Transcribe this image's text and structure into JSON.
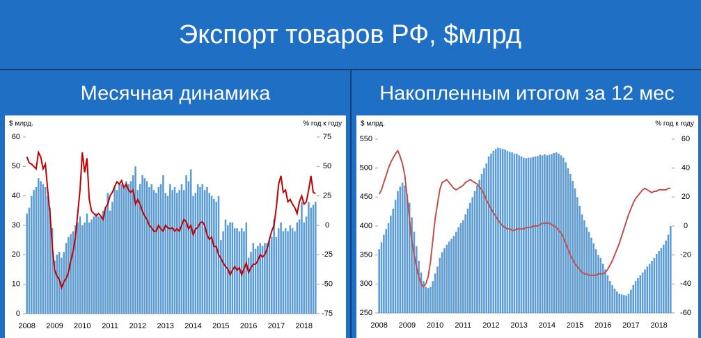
{
  "title": "Экспорт товаров РФ, $млрд",
  "chart_data": [
    {
      "type": "combo",
      "title": "Месячная динамика",
      "y_label": "$ млрд.",
      "y2_label": "% год к году",
      "categories": [
        "2008",
        null,
        null,
        null,
        null,
        null,
        null,
        null,
        null,
        null,
        null,
        null,
        "2009",
        null,
        null,
        null,
        null,
        null,
        null,
        null,
        null,
        null,
        null,
        null,
        "2010",
        null,
        null,
        null,
        null,
        null,
        null,
        null,
        null,
        null,
        null,
        null,
        "2011",
        null,
        null,
        null,
        null,
        null,
        null,
        null,
        null,
        null,
        null,
        null,
        "2012",
        null,
        null,
        null,
        null,
        null,
        null,
        null,
        null,
        null,
        null,
        null,
        "2013",
        null,
        null,
        null,
        null,
        null,
        null,
        null,
        null,
        null,
        null,
        null,
        "2014",
        null,
        null,
        null,
        null,
        null,
        null,
        null,
        null,
        null,
        null,
        null,
        "2015",
        null,
        null,
        null,
        null,
        null,
        null,
        null,
        null,
        null,
        null,
        null,
        "2016",
        null,
        null,
        null,
        null,
        null,
        null,
        null,
        null,
        null,
        null,
        null,
        "2017",
        null,
        null,
        null,
        null,
        null,
        null,
        null,
        null,
        null,
        null,
        null,
        "2018",
        null,
        null,
        null,
        null,
        null
      ],
      "series": [
        {
          "color": "#5b9bd5",
          "values": [
            34,
            36,
            40,
            42,
            43,
            46,
            45,
            44,
            43,
            40,
            36,
            29,
            18,
            20,
            21,
            19,
            21,
            24,
            26,
            27,
            28,
            30,
            31,
            33,
            30,
            31,
            34,
            31,
            32,
            33,
            34,
            33,
            33,
            35,
            36,
            41,
            35,
            38,
            43,
            42,
            44,
            44,
            43,
            45,
            44,
            45,
            47,
            50,
            42,
            44,
            47,
            46,
            45,
            43,
            44,
            42,
            41,
            43,
            44,
            47,
            41,
            40,
            44,
            42,
            43,
            41,
            42,
            44,
            42,
            47,
            45,
            49,
            40,
            41,
            44,
            43,
            44,
            42,
            43,
            41,
            40,
            39,
            38,
            40,
            25,
            28,
            32,
            30,
            31,
            31,
            29,
            29,
            28,
            29,
            28,
            31,
            19,
            21,
            24,
            22,
            23,
            24,
            23,
            24,
            24,
            25,
            26,
            32,
            26,
            29,
            31,
            28,
            29,
            28,
            30,
            29,
            28,
            31,
            32,
            38,
            31,
            33,
            38,
            36,
            37,
            38
          ]
        },
        {
          "color": "#c00000",
          "axis": "y2",
          "values": [
            58,
            53,
            52,
            50,
            48,
            62,
            58,
            48,
            52,
            30,
            10,
            -18,
            -38,
            -43,
            -46,
            -53,
            -48,
            -45,
            -40,
            -30,
            -22,
            -10,
            10,
            30,
            62,
            45,
            57,
            22,
            12,
            10,
            8,
            10,
            8,
            5,
            15,
            18,
            25,
            28,
            33,
            37,
            35,
            38,
            32,
            35,
            30,
            28,
            30,
            18,
            22,
            18,
            12,
            8,
            5,
            0,
            -2,
            -5,
            -5,
            0,
            -3,
            -5,
            0,
            -2,
            -3,
            -2,
            -5,
            -3,
            -5,
            0,
            5,
            3,
            -3,
            0,
            -8,
            -3,
            -2,
            2,
            3,
            0,
            -8,
            -12,
            -10,
            -18,
            -18,
            -25,
            -28,
            -32,
            -35,
            -37,
            -42,
            -38,
            -35,
            -38,
            -36,
            -42,
            -37,
            -32,
            -40,
            -36,
            -33,
            -33,
            -30,
            -25,
            -27,
            -25,
            -20,
            -12,
            -5,
            0,
            15,
            35,
            42,
            28,
            30,
            20,
            22,
            18,
            15,
            10,
            20,
            25,
            18,
            20,
            30,
            42,
            28,
            27
          ]
        }
      ],
      "ylim": [
        0,
        60
      ],
      "yticks": [
        0,
        10,
        20,
        30,
        40,
        50,
        60
      ],
      "y2lim": [
        -75,
        75
      ],
      "y2ticks": [
        -75,
        -50,
        -25,
        0,
        25,
        50,
        75
      ]
    },
    {
      "type": "combo",
      "title": "Накопленным итогом за 12 мес",
      "y_label": "$ млрд.",
      "y2_label": "% год к году",
      "categories": [
        "2008",
        null,
        null,
        null,
        null,
        null,
        null,
        null,
        null,
        null,
        null,
        null,
        "2009",
        null,
        null,
        null,
        null,
        null,
        null,
        null,
        null,
        null,
        null,
        null,
        "2010",
        null,
        null,
        null,
        null,
        null,
        null,
        null,
        null,
        null,
        null,
        null,
        "2011",
        null,
        null,
        null,
        null,
        null,
        null,
        null,
        null,
        null,
        null,
        null,
        "2012",
        null,
        null,
        null,
        null,
        null,
        null,
        null,
        null,
        null,
        null,
        null,
        "2013",
        null,
        null,
        null,
        null,
        null,
        null,
        null,
        null,
        null,
        null,
        null,
        "2014",
        null,
        null,
        null,
        null,
        null,
        null,
        null,
        null,
        null,
        null,
        null,
        "2015",
        null,
        null,
        null,
        null,
        null,
        null,
        null,
        null,
        null,
        null,
        null,
        "2016",
        null,
        null,
        null,
        null,
        null,
        null,
        null,
        null,
        null,
        null,
        null,
        "2017",
        null,
        null,
        null,
        null,
        null,
        null,
        null,
        null,
        null,
        null,
        null,
        "2018",
        null,
        null,
        null,
        null,
        null
      ],
      "series": [
        {
          "color": "#5b9bd5",
          "values": [
            360,
            372,
            385,
            395,
            405,
            418,
            430,
            445,
            460,
            468,
            475,
            470,
            455,
            440,
            415,
            390,
            365,
            340,
            320,
            305,
            295,
            293,
            295,
            305,
            318,
            330,
            345,
            355,
            362,
            368,
            373,
            378,
            383,
            390,
            398,
            405,
            410,
            420,
            430,
            440,
            450,
            460,
            470,
            480,
            490,
            500,
            508,
            520,
            525,
            530,
            533,
            535,
            534,
            533,
            532,
            530,
            528,
            527,
            525,
            525,
            522,
            520,
            518,
            517,
            518,
            518,
            519,
            520,
            521,
            523,
            522,
            524,
            522,
            523,
            524,
            526,
            527,
            525,
            522,
            518,
            510,
            500,
            490,
            478,
            465,
            450,
            435,
            420,
            410,
            398,
            390,
            380,
            370,
            360,
            350,
            345,
            335,
            325,
            315,
            305,
            298,
            292,
            287,
            283,
            282,
            281,
            280,
            283,
            290,
            298,
            305,
            310,
            315,
            320,
            325,
            330,
            335,
            340,
            345,
            352,
            357,
            362,
            368,
            375,
            385,
            400
          ]
        },
        {
          "color": "#c0504d",
          "axis": "y2",
          "values": [
            22,
            25,
            30,
            35,
            40,
            44,
            47,
            50,
            52,
            48,
            43,
            35,
            20,
            5,
            -10,
            -20,
            -28,
            -35,
            -40,
            -42,
            -40,
            -35,
            -25,
            -10,
            5,
            15,
            25,
            30,
            31,
            32,
            30,
            28,
            26,
            25,
            26,
            27,
            28,
            30,
            31,
            32,
            31,
            30,
            29,
            27,
            25,
            22,
            18,
            15,
            12,
            9,
            7,
            4,
            2,
            0,
            -1,
            -2,
            -2,
            -3,
            -3,
            -2,
            -2,
            -2,
            -2,
            -1,
            -1,
            -1,
            0,
            0,
            0,
            1,
            2,
            2,
            2,
            2,
            1,
            0,
            -1,
            -3,
            -5,
            -8,
            -12,
            -16,
            -20,
            -23,
            -26,
            -28,
            -30,
            -32,
            -33,
            -33,
            -34,
            -34,
            -34,
            -34,
            -33,
            -33,
            -33,
            -32,
            -30,
            -27,
            -24,
            -20,
            -16,
            -12,
            -7,
            -2,
            3,
            8,
            12,
            16,
            19,
            21,
            23,
            25,
            26,
            25,
            24,
            23,
            24,
            24,
            25,
            25,
            25,
            25,
            26,
            26
          ]
        }
      ],
      "ylim": [
        250,
        550
      ],
      "yticks": [
        250,
        300,
        350,
        400,
        450,
        500,
        550
      ],
      "y2lim": [
        -60,
        60
      ],
      "y2ticks": [
        -60,
        -40,
        -20,
        0,
        20,
        40,
        60
      ]
    }
  ]
}
